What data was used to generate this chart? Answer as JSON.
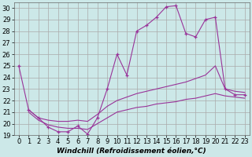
{
  "xlabel": "Windchill (Refroidissement éolien,°C)",
  "bg_color": "#cce8e8",
  "grid_color": "#aaaaaa",
  "line_color": "#993399",
  "xlim": [
    -0.5,
    23.5
  ],
  "ylim": [
    19,
    30.5
  ],
  "yticks": [
    19,
    20,
    21,
    22,
    23,
    24,
    25,
    26,
    27,
    28,
    29,
    30
  ],
  "xticks": [
    0,
    1,
    2,
    3,
    4,
    5,
    6,
    7,
    8,
    9,
    10,
    11,
    12,
    13,
    14,
    15,
    16,
    17,
    18,
    19,
    20,
    21,
    22,
    23
  ],
  "series_main": {
    "x": [
      0,
      1,
      2,
      3,
      4,
      5,
      6,
      7,
      8,
      9,
      10,
      11,
      12,
      13,
      14,
      15,
      16,
      17,
      18,
      19,
      20,
      21,
      22,
      23
    ],
    "y": [
      25,
      21.2,
      20.5,
      19.7,
      19.3,
      19.3,
      19.8,
      19.1,
      20.5,
      23.0,
      26.0,
      24.2,
      28.0,
      28.5,
      29.2,
      30.1,
      30.2,
      27.8,
      27.5,
      29.0,
      29.2,
      23.0,
      22.5,
      22.5
    ]
  },
  "series_upper": {
    "x": [
      1,
      2,
      3,
      4,
      5,
      6,
      7,
      8,
      9,
      10,
      11,
      12,
      13,
      14,
      15,
      16,
      17,
      18,
      19,
      20,
      21,
      22,
      23
    ],
    "y": [
      21.2,
      20.5,
      20.3,
      20.2,
      20.2,
      20.3,
      20.2,
      20.8,
      21.5,
      22.0,
      22.3,
      22.6,
      22.8,
      23.0,
      23.2,
      23.4,
      23.6,
      23.9,
      24.2,
      25.0,
      23.0,
      22.8,
      22.7
    ]
  },
  "series_lower": {
    "x": [
      1,
      2,
      3,
      4,
      5,
      6,
      7,
      8,
      9,
      10,
      11,
      12,
      13,
      14,
      15,
      16,
      17,
      18,
      19,
      20,
      21,
      22,
      23
    ],
    "y": [
      21.0,
      20.3,
      19.9,
      19.7,
      19.6,
      19.6,
      19.5,
      20.0,
      20.5,
      21.0,
      21.2,
      21.4,
      21.5,
      21.7,
      21.8,
      21.9,
      22.1,
      22.2,
      22.4,
      22.6,
      22.4,
      22.3,
      22.2
    ]
  },
  "font_size": 6,
  "xlabel_fontsize": 6.5
}
